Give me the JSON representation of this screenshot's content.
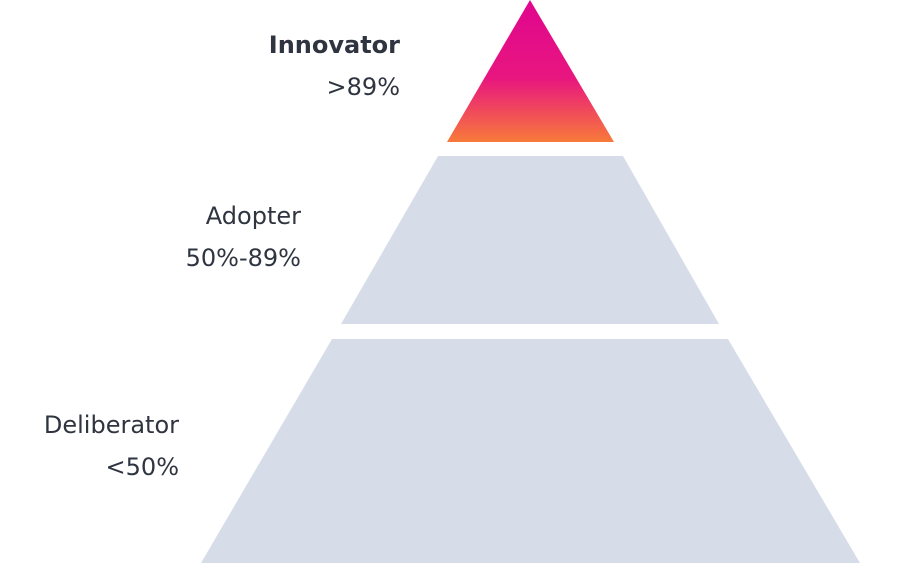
{
  "tiers": [
    {
      "id": "innovator",
      "name": "Innovator",
      "range": ">89%",
      "highlighted": true,
      "gradient": [
        "#e0068f",
        "#e8167f",
        "#f77a3a"
      ]
    },
    {
      "id": "adopter",
      "name": "Adopter",
      "range": "50%-89%",
      "highlighted": false,
      "color": "#d7dde8"
    },
    {
      "id": "deliberator",
      "name": "Deliberator",
      "range": "<50%",
      "highlighted": false,
      "color": "#d7dde8"
    }
  ]
}
